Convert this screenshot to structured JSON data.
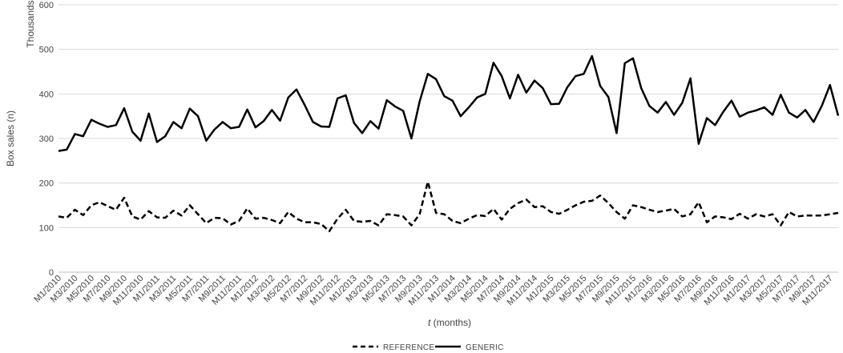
{
  "chart_data": {
    "type": "line",
    "ylabel": "Box sales (n)",
    "ylabel_units": "Thousands",
    "xlabel_italic": "t",
    "xlabel_rest": " (months)",
    "ylim": [
      0,
      600
    ],
    "yticks": [
      0,
      100,
      200,
      300,
      400,
      500,
      600
    ],
    "grid": "horizontal",
    "legend_position": "bottom-center",
    "x": [
      "M1/2010",
      "M2/2010",
      "M3/2010",
      "M4/2010",
      "M5/2010",
      "M6/2010",
      "M7/2010",
      "M8/2010",
      "M9/2010",
      "M10/2010",
      "M11/2010",
      "M12/2010",
      "M1/2011",
      "M2/2011",
      "M3/2011",
      "M4/2011",
      "M5/2011",
      "M6/2011",
      "M7/2011",
      "M8/2011",
      "M9/2011",
      "M10/2011",
      "M11/2011",
      "M12/2011",
      "M1/2012",
      "M2/2012",
      "M3/2012",
      "M4/2012",
      "M5/2012",
      "M6/2012",
      "M7/2012",
      "M8/2012",
      "M9/2012",
      "M10/2012",
      "M11/2012",
      "M12/2012",
      "M1/2013",
      "M2/2013",
      "M3/2013",
      "M4/2013",
      "M5/2013",
      "M6/2013",
      "M7/2013",
      "M8/2013",
      "M9/2013",
      "M10/2013",
      "M11/2013",
      "M12/2013",
      "M1/2014",
      "M2/2014",
      "M3/2014",
      "M4/2014",
      "M5/2014",
      "M6/2014",
      "M7/2014",
      "M8/2014",
      "M9/2014",
      "M10/2014",
      "M11/2014",
      "M12/2014",
      "M1/2015",
      "M2/2015",
      "M3/2015",
      "M4/2015",
      "M5/2015",
      "M6/2015",
      "M7/2015",
      "M8/2015",
      "M9/2015",
      "M10/2015",
      "M11/2015",
      "M12/2015",
      "M1/2016",
      "M2/2016",
      "M3/2016",
      "M4/2016",
      "M5/2016",
      "M6/2016",
      "M7/2016",
      "M8/2016",
      "M9/2016",
      "M10/2016",
      "M11/2016",
      "M12/2016",
      "M1/2017",
      "M2/2017",
      "M3/2017",
      "M4/2017",
      "M5/2017",
      "M6/2017",
      "M7/2017",
      "M8/2017",
      "M9/2017",
      "M10/2017",
      "M11/2017",
      "M12/2017"
    ],
    "xtick_labels": [
      "M1/2010",
      "M3/2010",
      "M5/2010",
      "M7/2010",
      "M9/2010",
      "M11/2010",
      "M1/2011",
      "M3/2011",
      "M5/2011",
      "M7/2011",
      "M9/2011",
      "M11/2011",
      "M1/2012",
      "M3/2012",
      "M5/2012",
      "M7/2012",
      "M9/2012",
      "M11/2012",
      "M1/2013",
      "M3/2013",
      "M5/2013",
      "M7/2013",
      "M9/2013",
      "M11/2013",
      "M1/2014",
      "M3/2014",
      "M5/2014",
      "M7/2014",
      "M9/2014",
      "M11/2014",
      "M1/2015",
      "M3/2015",
      "M5/2015",
      "M7/2015",
      "M9/2015",
      "M11/2015",
      "M1/2016",
      "M3/2016",
      "M5/2016",
      "M7/2016",
      "M9/2016",
      "M11/2016",
      "M1/2017",
      "M3/2017",
      "M5/2017",
      "M7/2017",
      "M9/2017",
      "M11/2017"
    ],
    "series": [
      {
        "name": "REFERENCE",
        "style": "dashed",
        "color": "#000000",
        "values": [
          125,
          122,
          140,
          128,
          150,
          157,
          148,
          140,
          167,
          125,
          118,
          137,
          123,
          122,
          138,
          127,
          150,
          130,
          110,
          122,
          121,
          107,
          115,
          143,
          120,
          122,
          117,
          110,
          135,
          120,
          112,
          112,
          108,
          92,
          120,
          140,
          115,
          113,
          115,
          105,
          130,
          128,
          125,
          105,
          130,
          203,
          133,
          130,
          115,
          110,
          120,
          128,
          126,
          142,
          118,
          142,
          155,
          163,
          146,
          148,
          135,
          131,
          140,
          150,
          158,
          160,
          172,
          155,
          135,
          120,
          150,
          146,
          140,
          135,
          138,
          142,
          125,
          130,
          157,
          112,
          125,
          123,
          119,
          131,
          120,
          130,
          125,
          130,
          105,
          135,
          125,
          127,
          127,
          127,
          130,
          133
        ]
      },
      {
        "name": "GENERIC",
        "style": "solid",
        "color": "#000000",
        "values": [
          272,
          275,
          310,
          305,
          342,
          333,
          326,
          330,
          368,
          315,
          295,
          356,
          292,
          305,
          337,
          323,
          367,
          350,
          295,
          320,
          337,
          323,
          326,
          365,
          325,
          339,
          364,
          340,
          392,
          410,
          375,
          337,
          327,
          326,
          390,
          397,
          335,
          312,
          339,
          322,
          386,
          372,
          362,
          300,
          383,
          445,
          433,
          395,
          385,
          350,
          370,
          392,
          400,
          470,
          440,
          390,
          443,
          403,
          430,
          413,
          377,
          378,
          415,
          440,
          445,
          485,
          418,
          393,
          312,
          469,
          480,
          413,
          373,
          358,
          382,
          353,
          380,
          435,
          288,
          346,
          330,
          360,
          385,
          349,
          358,
          363,
          370,
          353,
          398,
          358,
          347,
          364,
          337,
          373,
          420,
          351
        ]
      }
    ]
  }
}
